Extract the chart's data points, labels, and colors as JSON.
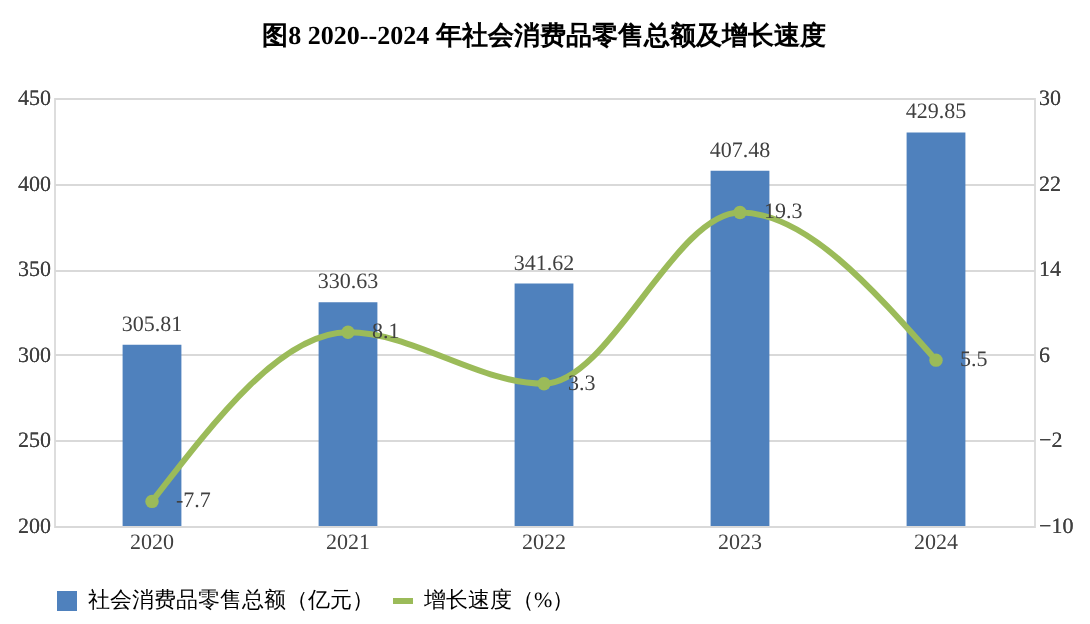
{
  "chart_data": {
    "type": "bar",
    "title": "图8   2020--2024 年社会消费品零售总额及增长速度",
    "categories": [
      "2020",
      "2021",
      "2022",
      "2023",
      "2024"
    ],
    "series": [
      {
        "name": "社会消费品零售总额（亿元）",
        "color": "#4f81bd",
        "values": [
          305.81,
          330.63,
          341.62,
          407.48,
          429.85
        ]
      },
      {
        "name": "增长速度（%）",
        "type": "line",
        "axis": "y2",
        "color": "#9bbb59",
        "values": [
          -7.7,
          8.1,
          3.3,
          19.3,
          5.5
        ]
      }
    ],
    "ylim": [
      200,
      450
    ],
    "yticks": [
      200,
      250,
      300,
      350,
      400,
      450
    ],
    "y2lim": [
      -10,
      30
    ],
    "y2ticks": [
      -10,
      -2,
      6,
      14,
      22,
      30
    ],
    "data_labels": true,
    "grid": "y",
    "legend": "bottom",
    "marker": "circle",
    "line_style": "solid"
  }
}
